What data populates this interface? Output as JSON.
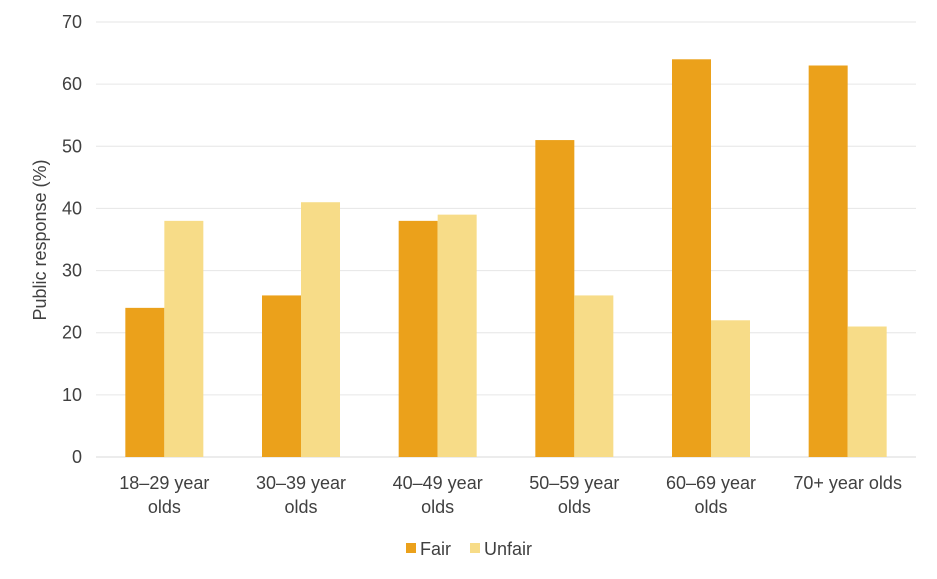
{
  "chart_data": {
    "type": "bar",
    "title": "",
    "xlabel": "",
    "ylabel": "Public response (%)",
    "ylim": [
      0,
      70
    ],
    "yticks": [
      0,
      10,
      20,
      30,
      40,
      50,
      60,
      70
    ],
    "grid": true,
    "legend_position": "bottom",
    "categories": [
      [
        "18–29 year",
        "olds"
      ],
      [
        "30–39 year",
        "olds"
      ],
      [
        "40–49 year",
        "olds"
      ],
      [
        "50–59 year",
        "olds"
      ],
      [
        "60–69 year",
        "olds"
      ],
      [
        "70+ year olds"
      ]
    ],
    "series": [
      {
        "name": "Fair",
        "color": "#eba11b",
        "values": [
          24,
          26,
          38,
          51,
          64,
          63
        ]
      },
      {
        "name": "Unfair",
        "color": "#f7dc88",
        "values": [
          38,
          41,
          39,
          26,
          22,
          21
        ]
      }
    ]
  }
}
